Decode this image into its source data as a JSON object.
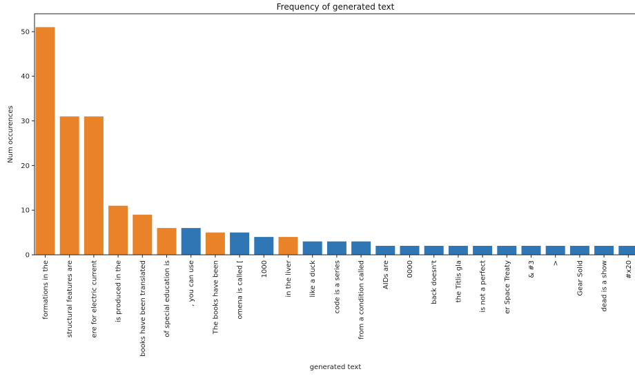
{
  "chart_data": {
    "type": "bar",
    "title": "Frequency of generated text",
    "xlabel": "generated text",
    "ylabel": "Num occurences",
    "ylim": [
      0,
      54
    ],
    "yticks": [
      0,
      10,
      20,
      30,
      40,
      50
    ],
    "grid": false,
    "colors": {
      "orange": "#e8832a",
      "blue": "#2f77b4"
    },
    "categories": [
      "formations in the",
      "structural features are",
      "ere for electric current",
      "is produced in the",
      "books have been translated",
      "of special education is",
      ", you can use",
      "The books have been",
      "omena is called [",
      "1000",
      "in the liver",
      "like a duck",
      "code is a series",
      "from a condition called",
      "AIDs are",
      "0000",
      "back doesn't",
      "the Titlis gla",
      "is not a perfect",
      "er Space Treaty",
      "&  #3",
      ">",
      "Gear Solid",
      "dead is a show",
      "#x20"
    ],
    "values": [
      51,
      31,
      31,
      11,
      9,
      6,
      6,
      5,
      5,
      4,
      4,
      3,
      3,
      3,
      2,
      2,
      2,
      2,
      2,
      2,
      2,
      2,
      2,
      2,
      2
    ],
    "bar_colors": [
      "orange",
      "orange",
      "orange",
      "orange",
      "orange",
      "orange",
      "blue",
      "orange",
      "blue",
      "blue",
      "orange",
      "blue",
      "blue",
      "blue",
      "blue",
      "blue",
      "blue",
      "blue",
      "blue",
      "blue",
      "blue",
      "blue",
      "blue",
      "blue",
      "blue"
    ]
  }
}
